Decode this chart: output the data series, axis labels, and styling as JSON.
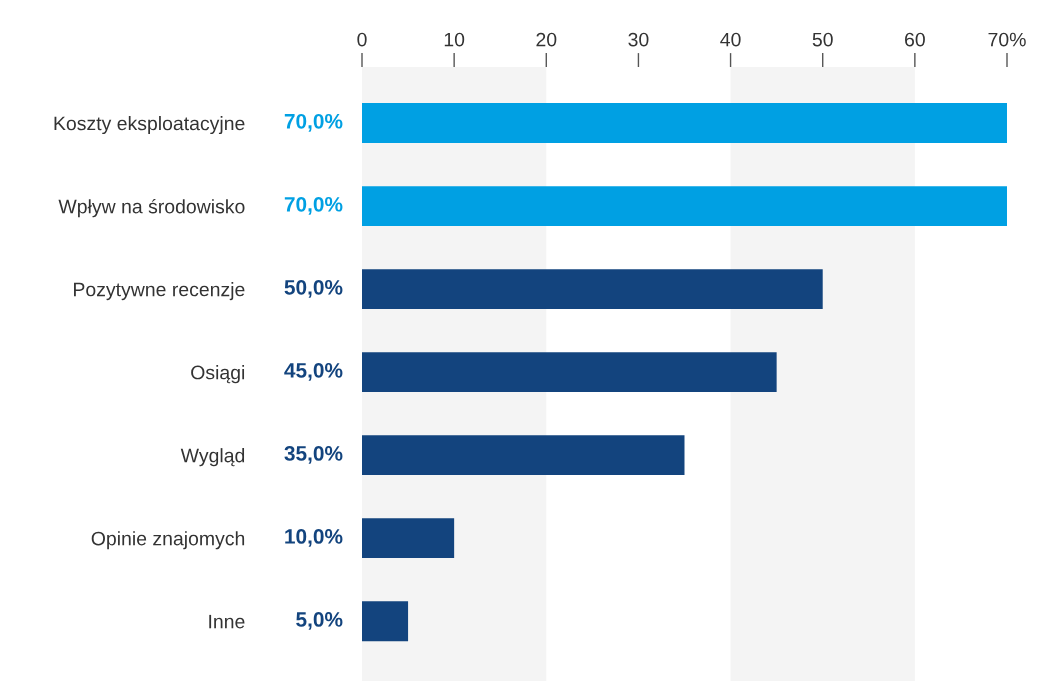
{
  "chart_data": {
    "type": "bar",
    "orientation": "horizontal",
    "categories": [
      "Koszty eksploatacyjne",
      "Wpływ na środowisko",
      "Pozytywne recenzje",
      "Osiągi",
      "Wygląd",
      "Opinie znajomych",
      "Inne"
    ],
    "values": [
      70,
      70,
      50,
      45,
      35,
      10,
      5
    ],
    "colors": [
      "#00a0e3",
      "#00a0e3",
      "#13447e",
      "#13447e",
      "#13447e",
      "#13447e",
      "#13447e"
    ],
    "value_labels": [
      "70,0%",
      "70,0%",
      "50,0%",
      "45,0%",
      "35,0%",
      "10,0%",
      "5,0%"
    ],
    "xlim": [
      0,
      70
    ],
    "xticks": [
      0,
      10,
      20,
      30,
      40,
      50,
      60,
      {
        "value": 70,
        "label": "70%"
      }
    ],
    "bands": [
      {
        "axis": "x",
        "from": 0,
        "to": 20,
        "color": "#f4f4f4"
      },
      {
        "axis": "x",
        "from": 40,
        "to": 60,
        "color": "#f4f4f4"
      }
    ],
    "grid": false,
    "legend": false
  }
}
